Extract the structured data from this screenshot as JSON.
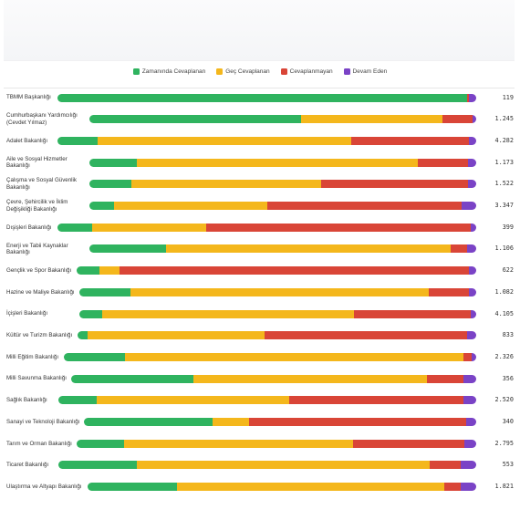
{
  "chart_data": {
    "type": "bar",
    "orientation": "horizontal",
    "stacked": "percent",
    "legend": {
      "position": "top-center",
      "entries": [
        {
          "name": "Zamanında Cevaplanan",
          "color": "#2fb35f"
        },
        {
          "name": "Geç Cevaplanan",
          "color": "#f4b71c"
        },
        {
          "name": "Cevaplanmayan",
          "color": "#d94537"
        },
        {
          "name": "Devam Eden",
          "color": "#7a43c6"
        }
      ]
    },
    "categories": [
      {
        "label": "TBMM Başkanlığı",
        "total": "119",
        "shares": [
          0.978,
          0,
          0.005,
          0.017
        ]
      },
      {
        "label": "Cumhurbaşkanı Yardımcılığı (Cevdet Yılmaz)",
        "total": "1.245",
        "shares": [
          0.546,
          0.367,
          0.077,
          0.01
        ]
      },
      {
        "label": "Adalet Bakanlığı",
        "total": "4.282",
        "shares": [
          0.095,
          0.606,
          0.281,
          0.018
        ]
      },
      {
        "label": "Aile ve Sosyal Hizmetler Bakanlığı",
        "total": "1.173",
        "shares": [
          0.123,
          0.727,
          0.129,
          0.021
        ]
      },
      {
        "label": "Çalışma ve Sosyal Güvenlik Bakanlığı",
        "total": "1.522",
        "shares": [
          0.109,
          0.49,
          0.38,
          0.021
        ]
      },
      {
        "label": "Çevre, Şehircilik ve İklim Değişikliği Bakanlığı",
        "total": "3.347",
        "shares": [
          0.064,
          0.397,
          0.502,
          0.037
        ]
      },
      {
        "label": "Dışişleri Bakanlığı",
        "total": "399",
        "shares": [
          0.082,
          0.274,
          0.63,
          0.014
        ]
      },
      {
        "label": "Enerji ve Tabii Kaynaklar Bakanlığı",
        "total": "1.106",
        "shares": [
          0.199,
          0.734,
          0.043,
          0.024
        ]
      },
      {
        "label": "Gençlik ve Spor Bakanlığı",
        "total": "622",
        "shares": [
          0.056,
          0.051,
          0.874,
          0.019
        ]
      },
      {
        "label": "Hazine ve Maliye Bakanlığı",
        "total": "1.082",
        "shares": [
          0.129,
          0.752,
          0.1,
          0.019
        ]
      },
      {
        "label": "İçişleri Bakanlığı",
        "total": "4.105",
        "shares": [
          0.057,
          0.636,
          0.293,
          0.014
        ]
      },
      {
        "label": "Kültür ve Turizm Bakanlığı",
        "total": "833",
        "shares": [
          0.026,
          0.443,
          0.508,
          0.023
        ]
      },
      {
        "label": "Milli Eğitim Bakanlığı",
        "total": "2.326",
        "shares": [
          0.148,
          0.822,
          0.02,
          0.01
        ]
      },
      {
        "label": "Milli Savunma Bakanlığı",
        "total": "356",
        "shares": [
          0.302,
          0.577,
          0.089,
          0.032
        ]
      },
      {
        "label": "Sağlık Bakanlığı",
        "total": "2.520",
        "shares": [
          0.092,
          0.46,
          0.418,
          0.03
        ]
      },
      {
        "label": "Sanayi ve Teknoloji Bakanlığı",
        "total": "340",
        "shares": [
          0.328,
          0.093,
          0.553,
          0.026
        ]
      },
      {
        "label": "Tarım ve Orman Bakanlığı",
        "total": "2.795",
        "shares": [
          0.118,
          0.573,
          0.279,
          0.03
        ]
      },
      {
        "label": "Ticaret Bakanlığı",
        "total": "553",
        "shares": [
          0.187,
          0.701,
          0.075,
          0.037
        ]
      },
      {
        "label": "Ulaştırma ve Altyapı Bakanlığı",
        "total": "1.821",
        "shares": [
          0.23,
          0.687,
          0.044,
          0.039
        ]
      }
    ]
  }
}
